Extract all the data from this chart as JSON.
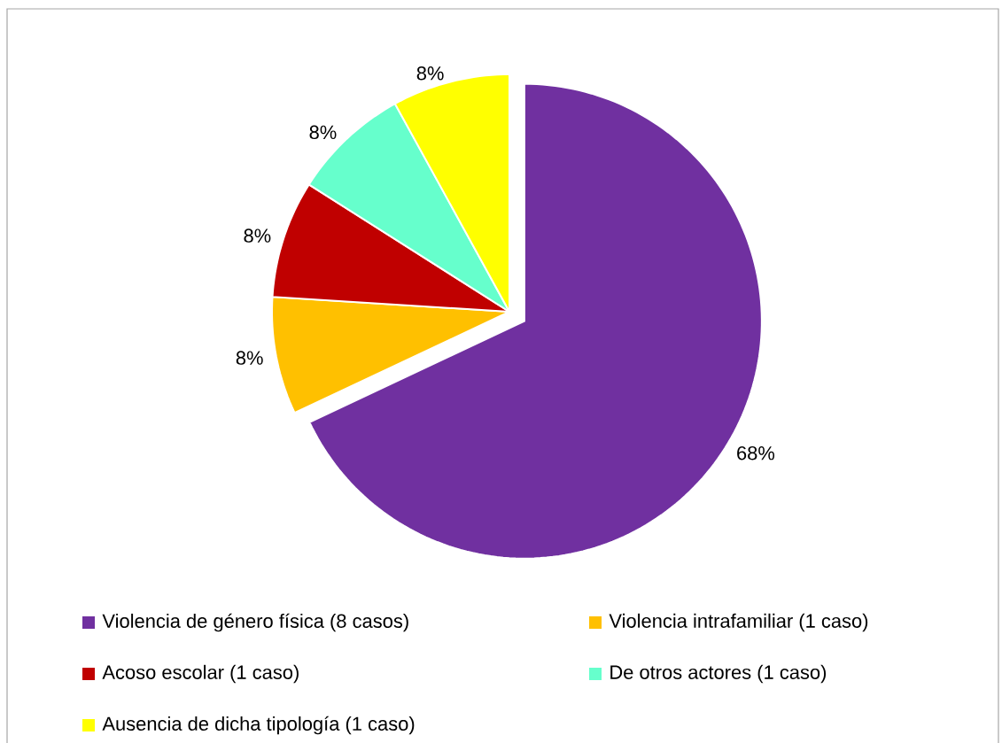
{
  "chart_data": {
    "type": "pie",
    "categories": [
      "Violencia de género física (8 casos)",
      "Violencia intrafamiliar (1 caso)",
      "Acoso escolar (1 caso)",
      "De otros actores (1 caso)",
      "Ausencia de dicha tipología (1 caso)"
    ],
    "values": [
      68,
      8,
      8,
      8,
      8
    ],
    "colors": [
      "#7030a0",
      "#ffc000",
      "#c00000",
      "#66ffcc",
      "#ffff00"
    ],
    "value_labels": [
      "68%",
      "8%",
      "8%",
      "8%",
      "8%"
    ],
    "legend": "bottom"
  }
}
